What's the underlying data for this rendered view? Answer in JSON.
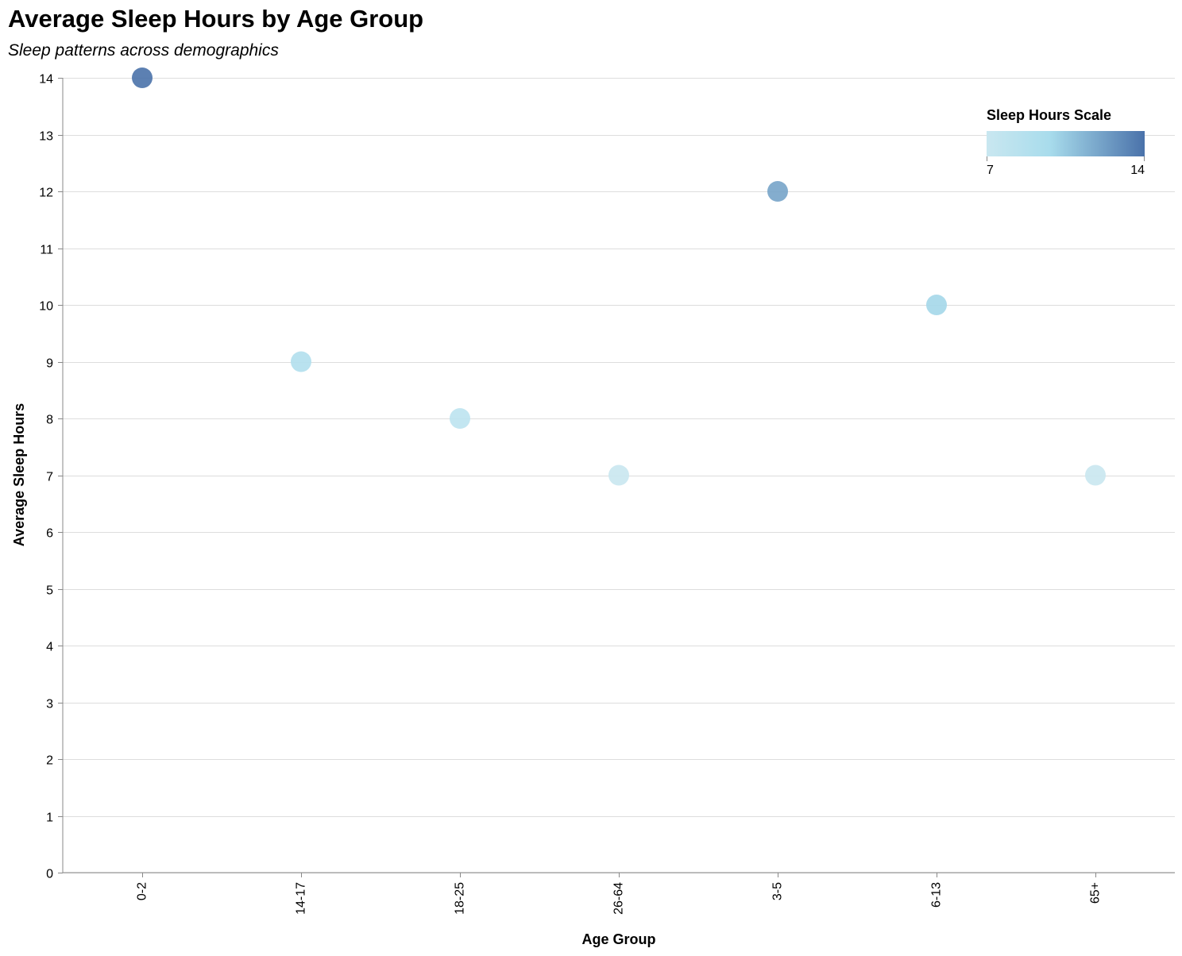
{
  "title": "Average Sleep Hours by Age Group",
  "subtitle": "Sleep patterns across demographics",
  "chart_data": {
    "type": "scatter",
    "title": "Average Sleep Hours by Age Group",
    "subtitle": "Sleep patterns across demographics",
    "xlabel": "Age Group",
    "ylabel": "Average Sleep Hours",
    "categories": [
      "0-2",
      "14-17",
      "18-25",
      "26-64",
      "3-5",
      "6-13",
      "65+"
    ],
    "values": [
      14,
      9,
      8,
      7,
      12,
      10,
      7
    ],
    "ylim": [
      0,
      14
    ],
    "yticks": [
      0,
      1,
      2,
      3,
      4,
      5,
      6,
      7,
      8,
      9,
      10,
      11,
      12,
      13,
      14
    ],
    "grid": true,
    "legend": {
      "title": "Sleep Hours Scale",
      "min_label": "7",
      "max_label": "14",
      "domain": [
        7,
        14
      ],
      "placement": "top-right"
    },
    "color_scale": [
      "#c9e7f0",
      "#a8dcec",
      "#4a72aa"
    ]
  }
}
